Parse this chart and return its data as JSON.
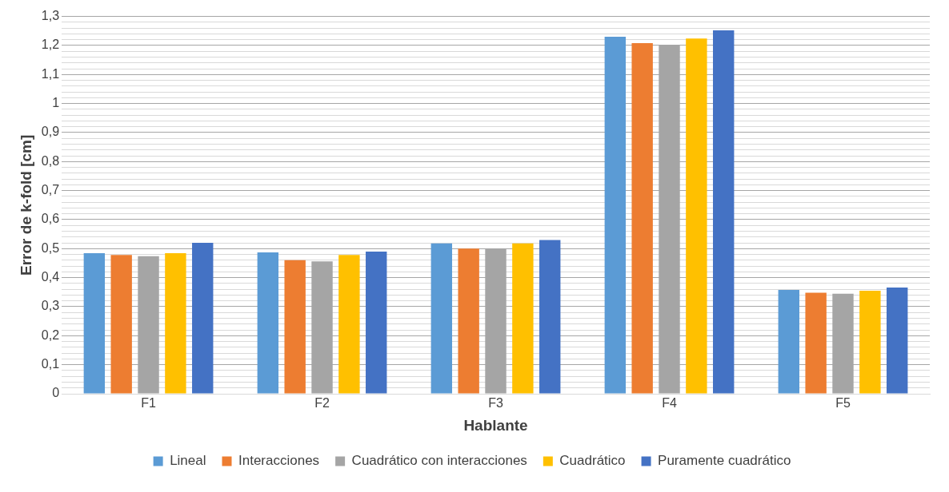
{
  "chart_data": {
    "type": "bar",
    "xlabel": "Hablante",
    "ylabel": "Error de k-fold [cm]",
    "categories": [
      "F1",
      "F2",
      "F3",
      "F4",
      "F5"
    ],
    "series": [
      {
        "name": "Lineal",
        "color": "#5b9bd5",
        "values": [
          0.484,
          0.487,
          0.518,
          1.23,
          0.358
        ]
      },
      {
        "name": "Interacciones",
        "color": "#ed7d31",
        "values": [
          0.478,
          0.46,
          0.5,
          1.208,
          0.348
        ]
      },
      {
        "name": "Cuadrático con interacciones",
        "color": "#a5a5a5",
        "values": [
          0.474,
          0.456,
          0.5,
          1.2,
          0.345
        ]
      },
      {
        "name": "Cuadrático",
        "color": "#ffc000",
        "values": [
          0.484,
          0.478,
          0.518,
          1.224,
          0.355
        ]
      },
      {
        "name": "Puramente cuadrático",
        "color": "#4472c4",
        "values": [
          0.52,
          0.49,
          0.53,
          1.252,
          0.366
        ]
      }
    ],
    "ylim": [
      0,
      1.3
    ],
    "yticks": [
      0,
      {
        "value": 0.02,
        "label": null
      },
      {
        "value": 0.04,
        "label": null
      },
      {
        "value": 0.06,
        "label": null
      },
      {
        "value": 0.08,
        "label": null
      },
      {
        "value": 0.1,
        "label": "0,1"
      },
      {
        "value": 0.12,
        "label": null
      },
      {
        "value": 0.14,
        "label": null
      },
      {
        "value": 0.16,
        "label": null
      },
      {
        "value": 0.18,
        "label": null
      },
      {
        "value": 0.2,
        "label": "0,2"
      },
      {
        "value": 0.22,
        "label": null
      },
      {
        "value": 0.24,
        "label": null
      },
      {
        "value": 0.26,
        "label": null
      },
      {
        "value": 0.28,
        "label": null
      },
      {
        "value": 0.3,
        "label": "0,3"
      },
      {
        "value": 0.32,
        "label": null
      },
      {
        "value": 0.34,
        "label": null
      },
      {
        "value": 0.36,
        "label": null
      },
      {
        "value": 0.38,
        "label": null
      },
      {
        "value": 0.4,
        "label": "0,4"
      },
      {
        "value": 0.42,
        "label": null
      },
      {
        "value": 0.44,
        "label": null
      },
      {
        "value": 0.46,
        "label": null
      },
      {
        "value": 0.48,
        "label": null
      },
      {
        "value": 0.5,
        "label": "0,5"
      },
      {
        "value": 0.52,
        "label": null
      },
      {
        "value": 0.54,
        "label": null
      },
      {
        "value": 0.56,
        "label": null
      },
      {
        "value": 0.58,
        "label": null
      },
      {
        "value": 0.6,
        "label": "0,6"
      },
      {
        "value": 0.62,
        "label": null
      },
      {
        "value": 0.64,
        "label": null
      },
      {
        "value": 0.66,
        "label": null
      },
      {
        "value": 0.68,
        "label": null
      },
      {
        "value": 0.7,
        "label": "0,7"
      },
      {
        "value": 0.72,
        "label": null
      },
      {
        "value": 0.74,
        "label": null
      },
      {
        "value": 0.76,
        "label": null
      },
      {
        "value": 0.78,
        "label": null
      },
      {
        "value": 0.8,
        "label": "0,8"
      },
      {
        "value": 0.82,
        "label": null
      },
      {
        "value": 0.84,
        "label": null
      },
      {
        "value": 0.86,
        "label": null
      },
      {
        "value": 0.88,
        "label": null
      },
      {
        "value": 0.9,
        "label": "0,9"
      },
      {
        "value": 0.92,
        "label": null
      },
      {
        "value": 0.94,
        "label": null
      },
      {
        "value": 0.96,
        "label": null
      },
      {
        "value": 0.98,
        "label": null
      },
      1,
      {
        "value": 1.02,
        "label": null
      },
      {
        "value": 1.04,
        "label": null
      },
      {
        "value": 1.06,
        "label": null
      },
      {
        "value": 1.08,
        "label": null
      },
      {
        "value": 1.1,
        "label": "1,1"
      },
      {
        "value": 1.12,
        "label": null
      },
      {
        "value": 1.14,
        "label": null
      },
      {
        "value": 1.16,
        "label": null
      },
      {
        "value": 1.18,
        "label": null
      },
      {
        "value": 1.2,
        "label": "1,2"
      },
      {
        "value": 1.22,
        "label": null
      },
      {
        "value": 1.24,
        "label": null
      },
      {
        "value": 1.26,
        "label": null
      },
      {
        "value": 1.28,
        "label": null
      },
      {
        "value": 1.3,
        "label": "1,3"
      }
    ],
    "grid": "y",
    "legend": "bottom"
  }
}
